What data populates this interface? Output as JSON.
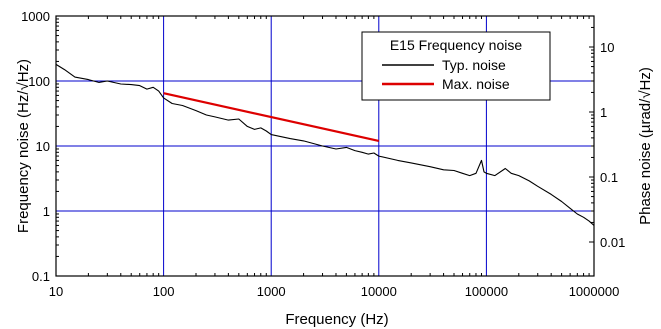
{
  "chart_data": {
    "type": "line",
    "title": "",
    "xlabel": "Frequency (Hz)",
    "ylabel": "Frequency noise (Hz/√Hz)",
    "y2label": "Phase noise (µrad/√Hz)",
    "xscale": "log",
    "yscale": "log",
    "xlim": [
      10,
      1000000
    ],
    "ylim": [
      0.1,
      1000
    ],
    "y2lim": [
      0.003,
      30
    ],
    "grid": true,
    "grid_color": "#0000cc",
    "x_ticks": [
      "10",
      "100",
      "1000",
      "10000",
      "100000",
      "1000000"
    ],
    "y_ticks": [
      "0.1",
      "1",
      "10",
      "100",
      "1000"
    ],
    "y2_ticks": [
      "0.01",
      "0.1",
      "1",
      "10"
    ],
    "legend": {
      "title": "E15 Frequency noise",
      "placement": "top-right",
      "entries": [
        {
          "label": "Typ. noise",
          "color": "#000000"
        },
        {
          "label": "Max. noise",
          "color": "#dd0000"
        }
      ]
    },
    "series": [
      {
        "name": "Typ. noise",
        "color": "#000000",
        "x": [
          10,
          12,
          15,
          20,
          25,
          30,
          40,
          50,
          60,
          70,
          80,
          90,
          100,
          120,
          150,
          200,
          250,
          300,
          400,
          500,
          600,
          700,
          800,
          900,
          1000,
          1500,
          2000,
          3000,
          4000,
          5000,
          6000,
          7000,
          8000,
          9000,
          10000,
          15000,
          20000,
          30000,
          40000,
          50000,
          60000,
          70000,
          80000,
          90000,
          95000,
          100000,
          120000,
          150000,
          170000,
          200000,
          250000,
          300000,
          400000,
          500000,
          600000,
          700000,
          800000,
          900000,
          1000000
        ],
        "values": [
          180,
          150,
          115,
          105,
          95,
          100,
          90,
          88,
          85,
          75,
          80,
          70,
          55,
          45,
          42,
          35,
          30,
          28,
          25,
          26,
          20,
          18,
          19,
          17,
          15,
          13,
          12,
          10,
          9,
          9.5,
          8.5,
          8,
          7.5,
          7.8,
          7,
          6,
          5.5,
          4.8,
          4.3,
          4.2,
          3.8,
          3.5,
          3.8,
          6,
          4,
          3.8,
          3.5,
          4.5,
          3.8,
          3.5,
          2.9,
          2.4,
          1.8,
          1.4,
          1.1,
          0.9,
          0.8,
          0.7,
          0.6
        ]
      },
      {
        "name": "Max. noise",
        "color": "#dd0000",
        "x": [
          100,
          10000
        ],
        "values": [
          65,
          12
        ]
      }
    ]
  }
}
